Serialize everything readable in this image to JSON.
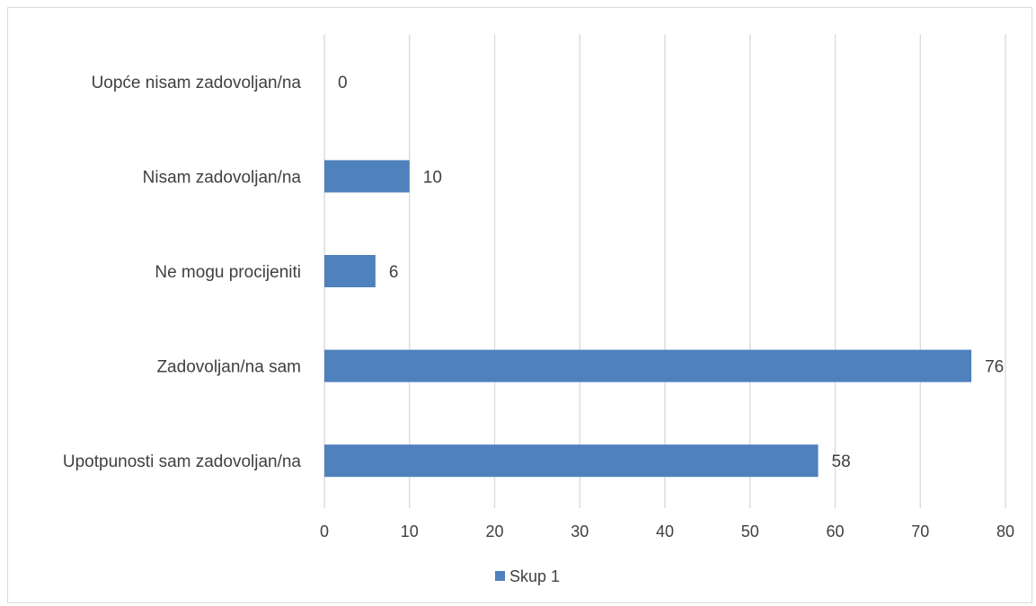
{
  "chart_data": {
    "type": "bar",
    "orientation": "horizontal",
    "categories": [
      "Uopće nisam zadovoljan/na",
      "Nisam zadovoljan/na",
      "Ne mogu procijeniti",
      "Zadovoljan/na sam",
      "Upotpunosti sam zadovoljan/na"
    ],
    "series": [
      {
        "name": "Skup 1",
        "values": [
          0,
          10,
          6,
          76,
          58
        ],
        "color": "#4F81BD"
      }
    ],
    "xlim": [
      0,
      80
    ],
    "xticks": [
      0,
      10,
      20,
      30,
      40,
      50,
      60,
      70,
      80
    ],
    "grid": true,
    "data_labels": true,
    "legend_position": "bottom",
    "title": "",
    "xlabel": "",
    "ylabel": ""
  }
}
